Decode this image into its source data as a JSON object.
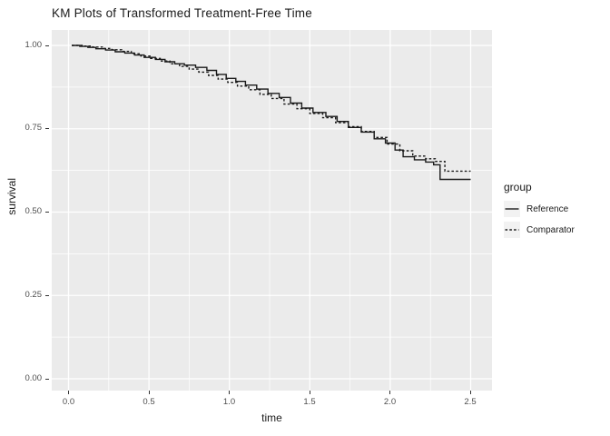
{
  "title": "KM Plots of Transformed Treatment-Free Time",
  "axes": {
    "x_title": "time",
    "y_title": "survival"
  },
  "legend": {
    "title": "group",
    "items": [
      {
        "label": "Reference",
        "line_style": "solid"
      },
      {
        "label": "Comparator",
        "line_style": "dashed"
      }
    ]
  },
  "colors": {
    "panel_background": "#EBEBEB",
    "gridline": "#FFFFFF",
    "curve": "#1A1A1A",
    "axis_text": "#4D4D4D",
    "tick_mark": "#333333",
    "legend_key_background": "#F2F2F2"
  },
  "chart_data": {
    "type": "line",
    "subtype": "kaplan-meier-step",
    "title": "KM Plots of Transformed Treatment-Free Time",
    "xlabel": "time",
    "ylabel": "survival",
    "xlim": [
      -0.1,
      2.62
    ],
    "ylim": [
      -0.045,
      1.045
    ],
    "grid": true,
    "legend_position": "right",
    "legend_title": "group",
    "x_major_ticks": [
      0.0,
      0.5,
      1.0,
      1.5,
      2.0,
      2.5
    ],
    "x_tick_labels": [
      "0.0",
      "0.5",
      "1.0",
      "1.5",
      "2.0",
      "2.5"
    ],
    "x_minor_gridlines": [
      0.25,
      0.75,
      1.25,
      1.75,
      2.25
    ],
    "y_major_ticks": [
      1.0,
      0.75,
      0.5,
      0.25,
      0.0
    ],
    "y_tick_labels": [
      "1.00",
      "0.75",
      "0.50",
      "0.25",
      "0.00"
    ],
    "y_minor_gridlines": [
      0.875,
      0.625,
      0.375,
      0.125
    ],
    "series": [
      {
        "name": "Reference",
        "line_style": "solid",
        "color": "#1A1A1A",
        "points": [
          [
            0.02,
            1.0
          ],
          [
            0.07,
            0.997
          ],
          [
            0.12,
            0.994
          ],
          [
            0.17,
            0.99
          ],
          [
            0.23,
            0.986
          ],
          [
            0.29,
            0.981
          ],
          [
            0.35,
            0.977
          ],
          [
            0.41,
            0.971
          ],
          [
            0.47,
            0.964
          ],
          [
            0.54,
            0.958
          ],
          [
            0.6,
            0.951
          ],
          [
            0.66,
            0.945
          ],
          [
            0.72,
            0.941
          ],
          [
            0.79,
            0.934
          ],
          [
            0.86,
            0.925
          ],
          [
            0.92,
            0.913
          ],
          [
            0.98,
            0.901
          ],
          [
            1.04,
            0.892
          ],
          [
            1.1,
            0.881
          ],
          [
            1.17,
            0.869
          ],
          [
            1.24,
            0.856
          ],
          [
            1.31,
            0.844
          ],
          [
            1.38,
            0.827
          ],
          [
            1.45,
            0.812
          ],
          [
            1.52,
            0.799
          ],
          [
            1.6,
            0.787
          ],
          [
            1.67,
            0.772
          ],
          [
            1.74,
            0.754
          ],
          [
            1.82,
            0.74
          ],
          [
            1.9,
            0.72
          ],
          [
            1.97,
            0.707
          ],
          [
            2.03,
            0.686
          ],
          [
            2.08,
            0.666
          ],
          [
            2.15,
            0.657
          ],
          [
            2.22,
            0.65
          ],
          [
            2.27,
            0.642
          ],
          [
            2.31,
            0.598
          ],
          [
            2.5,
            0.598
          ]
        ]
      },
      {
        "name": "Comparator",
        "line_style": "dashed",
        "color": "#1A1A1A",
        "points": [
          [
            0.02,
            1.0
          ],
          [
            0.09,
            0.998
          ],
          [
            0.15,
            0.995
          ],
          [
            0.21,
            0.991
          ],
          [
            0.27,
            0.987
          ],
          [
            0.33,
            0.982
          ],
          [
            0.39,
            0.975
          ],
          [
            0.45,
            0.968
          ],
          [
            0.51,
            0.961
          ],
          [
            0.57,
            0.953
          ],
          [
            0.63,
            0.945
          ],
          [
            0.69,
            0.937
          ],
          [
            0.75,
            0.929
          ],
          [
            0.81,
            0.92
          ],
          [
            0.87,
            0.91
          ],
          [
            0.93,
            0.899
          ],
          [
            0.99,
            0.889
          ],
          [
            1.05,
            0.878
          ],
          [
            1.12,
            0.867
          ],
          [
            1.19,
            0.853
          ],
          [
            1.26,
            0.841
          ],
          [
            1.34,
            0.824
          ],
          [
            1.42,
            0.81
          ],
          [
            1.5,
            0.796
          ],
          [
            1.58,
            0.783
          ],
          [
            1.66,
            0.768
          ],
          [
            1.74,
            0.756
          ],
          [
            1.82,
            0.742
          ],
          [
            1.9,
            0.724
          ],
          [
            1.98,
            0.704
          ],
          [
            2.06,
            0.684
          ],
          [
            2.14,
            0.668
          ],
          [
            2.22,
            0.66
          ],
          [
            2.28,
            0.652
          ],
          [
            2.34,
            0.623
          ],
          [
            2.5,
            0.623
          ]
        ]
      }
    ]
  }
}
